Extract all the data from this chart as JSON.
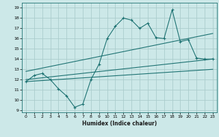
{
  "xlabel": "Humidex (Indice chaleur)",
  "bg_color": "#cce8e8",
  "grid_color": "#aacccc",
  "line_color": "#1a7070",
  "xlim": [
    -0.5,
    23.5
  ],
  "ylim": [
    8.8,
    19.5
  ],
  "yticks": [
    9,
    10,
    11,
    12,
    13,
    14,
    15,
    16,
    17,
    18,
    19
  ],
  "xticks": [
    0,
    1,
    2,
    3,
    4,
    5,
    6,
    7,
    8,
    9,
    10,
    11,
    12,
    13,
    14,
    15,
    16,
    17,
    18,
    19,
    20,
    21,
    22,
    23
  ],
  "wavy_x": [
    0,
    1,
    2,
    3,
    4,
    5,
    6,
    7,
    8,
    9,
    10,
    11,
    12,
    13,
    14,
    15,
    16,
    17,
    18,
    19,
    20,
    21,
    22,
    23
  ],
  "wavy_y": [
    11.8,
    12.4,
    12.6,
    12.0,
    11.1,
    10.4,
    9.3,
    9.6,
    12.0,
    13.5,
    16.0,
    17.2,
    18.0,
    17.8,
    17.0,
    17.5,
    16.1,
    16.0,
    18.8,
    15.7,
    15.9,
    14.1,
    14.0,
    14.0
  ],
  "line1_x": [
    0,
    23
  ],
  "line1_y": [
    12.0,
    14.0
  ],
  "line2_x": [
    0,
    23
  ],
  "line2_y": [
    12.8,
    16.5
  ],
  "line3_x": [
    0,
    23
  ],
  "line3_y": [
    11.8,
    13.0
  ]
}
